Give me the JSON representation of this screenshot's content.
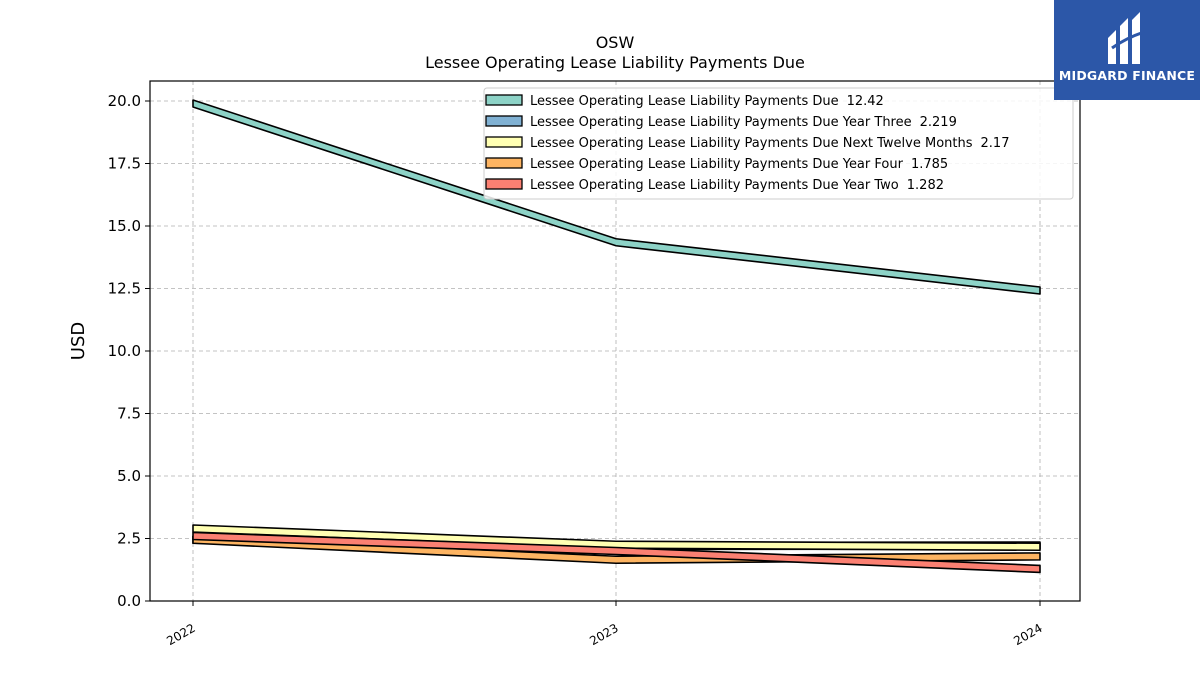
{
  "brand": {
    "name": "MIDGARD FINANCE",
    "bg_color": "#2c57a8"
  },
  "chart_data": {
    "type": "area",
    "title": "OSW",
    "subtitle": "Lessee Operating Lease Liability Payments Due",
    "xlabel": "",
    "ylabel": "USD",
    "categories": [
      "2022",
      "2023",
      "2024"
    ],
    "ylim": [
      0,
      20.8
    ],
    "yticks": [
      "0.0",
      "2.5",
      "5.0",
      "7.5",
      "10.0",
      "12.5",
      "15.0",
      "17.5",
      "20.0"
    ],
    "grid": true,
    "legend_position": "top-right",
    "series": [
      {
        "name": "Lessee Operating Lease Liability Payments Due",
        "last_label": "12.42",
        "values": [
          19.9,
          14.35,
          12.42
        ],
        "color": "#8dd3c7"
      },
      {
        "name": "Lessee Operating Lease Liability Payments Due Year Three",
        "last_label": "2.219",
        "values": [
          2.45,
          2.2,
          2.219
        ],
        "color": "#80b1d3"
      },
      {
        "name": "Lessee Operating Lease Liability Payments Due Next Twelve Months",
        "last_label": "2.17",
        "values": [
          2.9,
          2.25,
          2.17
        ],
        "color": "#ffffb3"
      },
      {
        "name": "Lessee Operating Lease Liability Payments Due Year Four",
        "last_label": "1.785",
        "values": [
          2.45,
          1.65,
          1.785
        ],
        "color": "#fdb462"
      },
      {
        "name": "Lessee Operating Lease Liability Payments Due Year Two",
        "last_label": "1.282",
        "values": [
          2.6,
          2.0,
          1.282
        ],
        "color": "#fb8072"
      }
    ]
  }
}
